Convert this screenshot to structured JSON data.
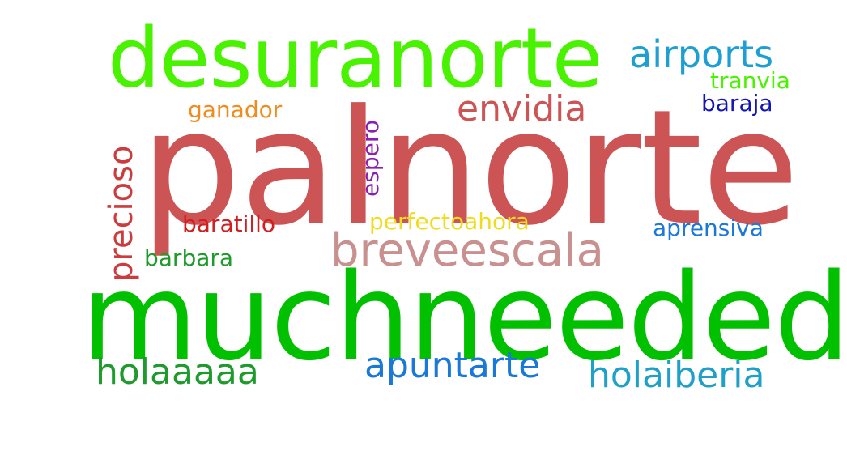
{
  "words": [
    {
      "key": "palnorte",
      "text": "palnorte",
      "color": "#cd5454",
      "orientation": "horizontal"
    },
    {
      "key": "muchneeded",
      "text": "muchneeded",
      "color": "#00c000",
      "orientation": "horizontal"
    },
    {
      "key": "desuranorte",
      "text": "desuranorte",
      "color": "#49f200",
      "orientation": "horizontal"
    },
    {
      "key": "breveescala",
      "text": "breveescala",
      "color": "#c99090",
      "orientation": "horizontal"
    },
    {
      "key": "airports",
      "text": "airports",
      "color": "#1e9fd4",
      "orientation": "horizontal"
    },
    {
      "key": "envidia",
      "text": "envidia",
      "color": "#cd5454",
      "orientation": "horizontal"
    },
    {
      "key": "holaaaaa",
      "text": "holaaaaa",
      "color": "#1f9b2d",
      "orientation": "horizontal"
    },
    {
      "key": "apuntarte",
      "text": "apuntarte",
      "color": "#1a78d8",
      "orientation": "horizontal"
    },
    {
      "key": "holaiberia",
      "text": "holaiberia",
      "color": "#1ea0c8",
      "orientation": "horizontal"
    },
    {
      "key": "tranvia",
      "text": "tranvia",
      "color": "#49f200",
      "orientation": "horizontal"
    },
    {
      "key": "baraja",
      "text": "baraja",
      "color": "#1414b4",
      "orientation": "horizontal"
    },
    {
      "key": "ganador",
      "text": "ganador",
      "color": "#f08c1e",
      "orientation": "horizontal"
    },
    {
      "key": "baratillo",
      "text": "baratillo",
      "color": "#d21e1e",
      "orientation": "horizontal"
    },
    {
      "key": "perfectoahora",
      "text": "perfectoahora",
      "color": "#f0dc1e",
      "orientation": "horizontal"
    },
    {
      "key": "aprensiva",
      "text": "aprensiva",
      "color": "#1a78d8",
      "orientation": "horizontal"
    },
    {
      "key": "barbara",
      "text": "barbara",
      "color": "#1f9b2d",
      "orientation": "horizontal"
    },
    {
      "key": "precioso",
      "text": "precioso",
      "color": "#cd3c3c",
      "orientation": "vertical"
    },
    {
      "key": "espero",
      "text": "espero",
      "color": "#8c1eb4",
      "orientation": "vertical"
    }
  ]
}
